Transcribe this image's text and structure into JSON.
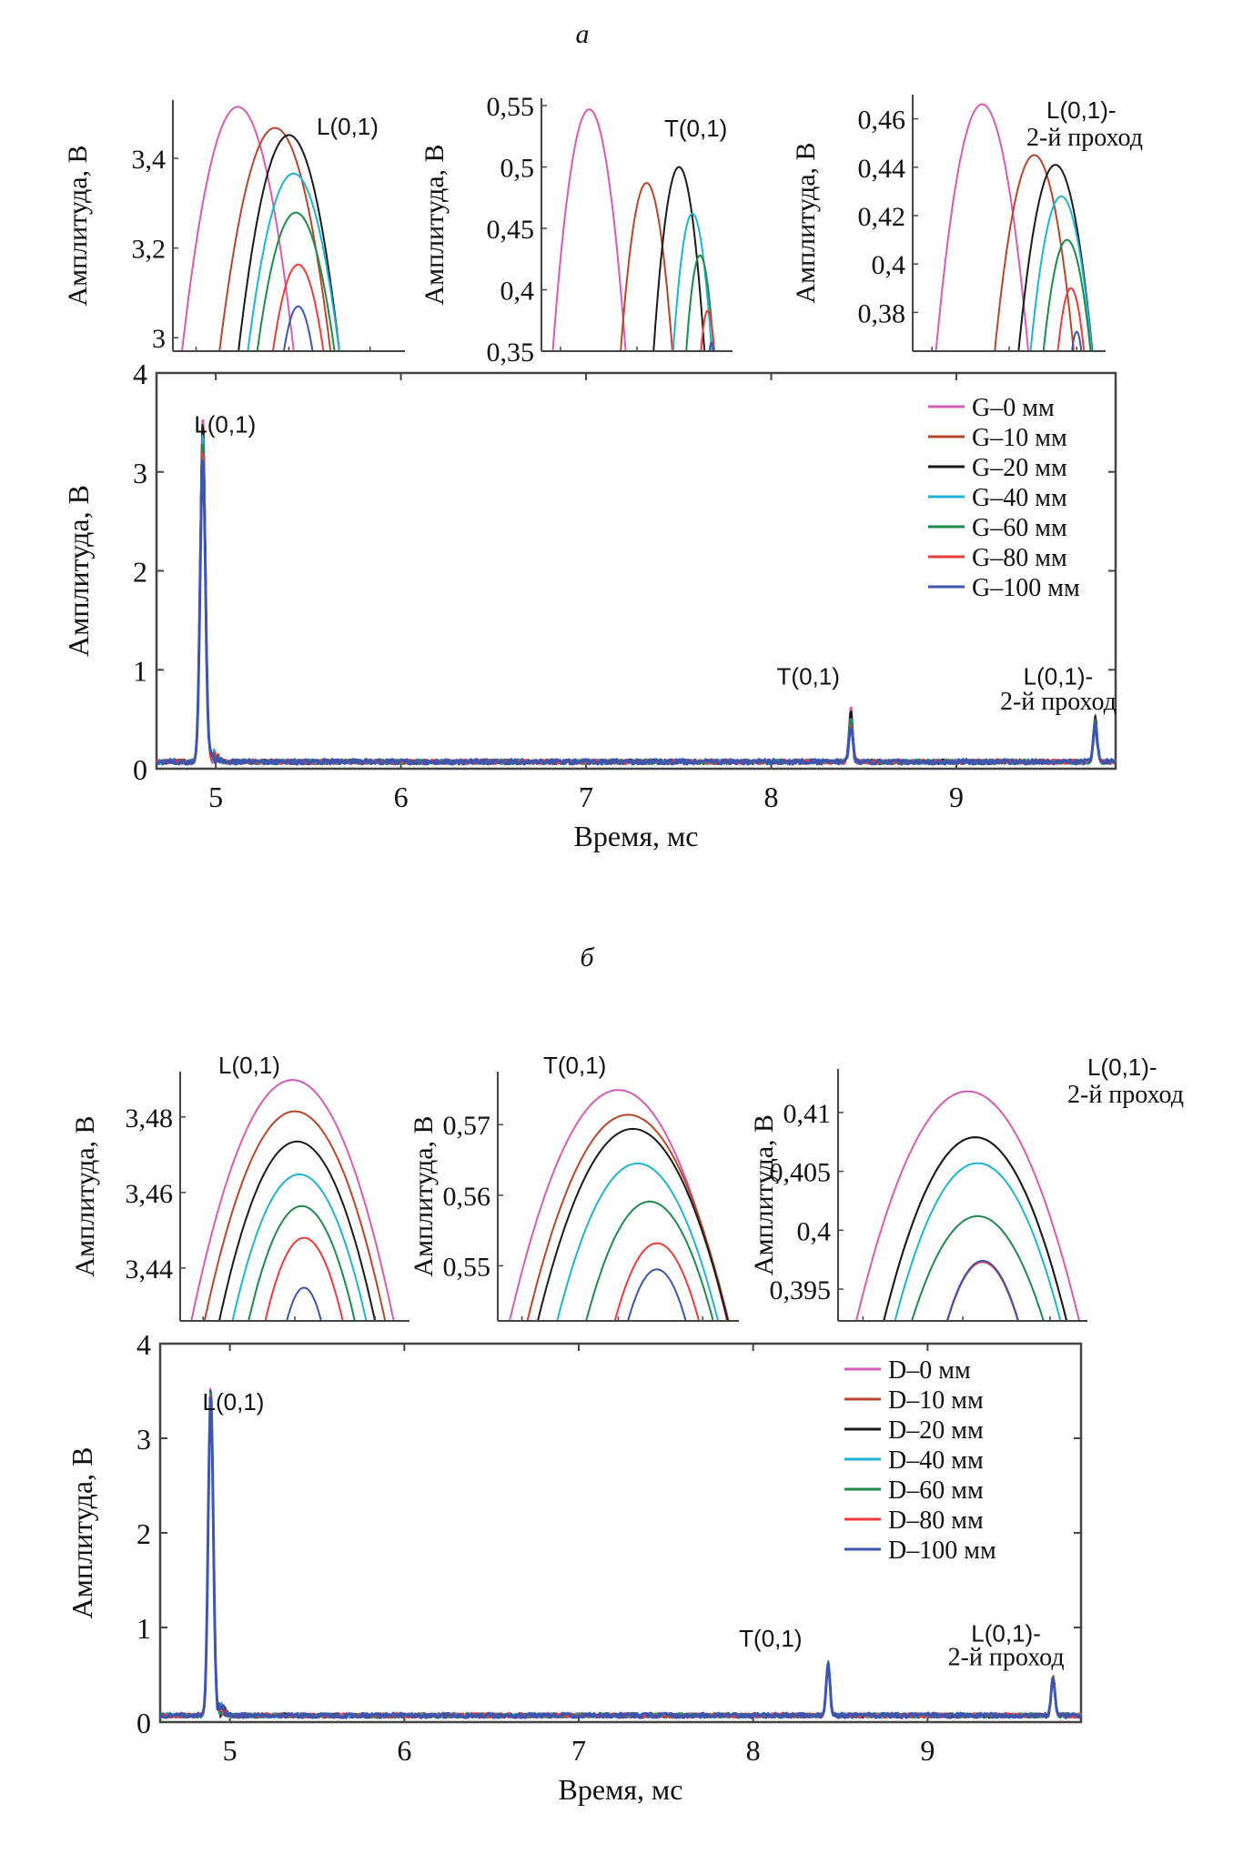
{
  "panel_labels": [
    "а",
    "б"
  ],
  "colors": {
    "0": "#d65cb5",
    "10": "#b8472a",
    "20": "#1a1a1a",
    "40": "#1fb3d4",
    "60": "#1e8a4c",
    "80": "#ee3b3b",
    "100": "#3e55b0"
  },
  "chart_data": [
    {
      "panel": "а",
      "type": "line",
      "title": "",
      "xlabel": "Время, мс",
      "ylabel": "Амплитуда, В",
      "xlim": [
        4.68,
        9.86
      ],
      "ylim": [
        0,
        4
      ],
      "xticks": [
        5,
        6,
        7,
        8,
        9
      ],
      "xtick_labels": [
        "5",
        "6",
        "7",
        "8",
        "9"
      ],
      "yticks": [
        0,
        1,
        2,
        3,
        4
      ],
      "ytick_labels": [
        "0",
        "1",
        "2",
        "3",
        "4"
      ],
      "grid": false,
      "legend_position": "top-right",
      "legend": [
        "G–0 мм",
        "G–10 мм",
        "G–20 мм",
        "G–40 мм",
        "G–60 мм",
        "G–80 мм",
        "G–100 мм"
      ],
      "series_keys": [
        "0",
        "10",
        "20",
        "40",
        "60",
        "80",
        "100"
      ],
      "baseline": 0.07,
      "annotations": [
        {
          "text": "L(0,1)",
          "x": 5.05,
          "y": 3.4
        },
        {
          "text": "T(0,1)",
          "x": 8.2,
          "y": 0.85
        },
        {
          "text": "L(0,1)-",
          "x": 9.55,
          "y": 0.85
        },
        {
          "text": "2-й проход",
          "x": 9.55,
          "y": 0.6
        }
      ],
      "peaks": [
        {
          "name": "L(0,1)",
          "x": 4.93,
          "width": 0.02,
          "amplitudes": [
            3.52,
            3.47,
            3.45,
            3.37,
            3.28,
            3.16,
            3.07
          ]
        },
        {
          "name": "T(0,1)",
          "x": 8.43,
          "width": 0.015,
          "amplitudes": [
            0.547,
            0.487,
            0.5,
            0.462,
            0.428,
            0.383,
            0.357
          ]
        },
        {
          "name": "L(0,1)-2-й проход",
          "x": 9.75,
          "width": 0.015,
          "amplitudes": [
            0.466,
            0.445,
            0.441,
            0.428,
            0.41,
            0.39,
            0.372
          ]
        }
      ],
      "insets": [
        {
          "name": "L(0,1)",
          "label": "L(0,1)",
          "ylabel": "Амплитуда, В",
          "ylim": [
            2.97,
            3.53
          ],
          "yticks": [
            3.0,
            3.2,
            3.4
          ],
          "ytick_labels": [
            "3",
            "3,2",
            "3,4"
          ],
          "peak_t": [
            0.28,
            0.44,
            0.5,
            0.52,
            0.53,
            0.54,
            0.54
          ],
          "peak_y": [
            3.515,
            3.468,
            3.452,
            3.366,
            3.279,
            3.163,
            3.07
          ],
          "half_width": [
            0.25,
            0.26,
            0.24,
            0.24,
            0.23,
            0.19,
            0.15
          ]
        },
        {
          "name": "T(0,1)",
          "label": "T(0,1)",
          "ylabel": "Амплитуда, В",
          "ylim": [
            0.35,
            0.556
          ],
          "yticks": [
            0.35,
            0.4,
            0.45,
            0.5,
            0.55
          ],
          "ytick_labels": [
            "0,35",
            "0,4",
            "0,45",
            "0,5",
            "0,55"
          ],
          "peak_t": [
            0.25,
            0.55,
            0.72,
            0.79,
            0.83,
            0.87,
            0.89
          ],
          "peak_y": [
            0.547,
            0.487,
            0.5,
            0.462,
            0.428,
            0.383,
            0.357
          ],
          "half_width": [
            0.2,
            0.17,
            0.16,
            0.14,
            0.12,
            0.09,
            0.06
          ]
        },
        {
          "name": "L(0,1)-2-й проход",
          "label": "L(0,1)-",
          "label2": "2-й проход",
          "ylabel": "Амплитуда, В",
          "ylim": [
            0.364,
            0.47
          ],
          "yticks": [
            0.38,
            0.4,
            0.42,
            0.44,
            0.46
          ],
          "ytick_labels": [
            "0,38",
            "0,4",
            "0,42",
            "0,44",
            "0,46"
          ],
          "peak_t": [
            0.36,
            0.63,
            0.74,
            0.77,
            0.8,
            0.82,
            0.85
          ],
          "peak_y": [
            0.466,
            0.445,
            0.441,
            0.428,
            0.41,
            0.39,
            0.372
          ],
          "half_width": [
            0.25,
            0.24,
            0.23,
            0.21,
            0.19,
            0.14,
            0.09
          ]
        }
      ]
    },
    {
      "panel": "б",
      "type": "line",
      "title": "",
      "xlabel": "Время, мс",
      "ylabel": "Амплитуда, В",
      "xlim": [
        4.6,
        9.88
      ],
      "ylim": [
        0,
        4
      ],
      "xticks": [
        5,
        6,
        7,
        8,
        9
      ],
      "xtick_labels": [
        "5",
        "6",
        "7",
        "8",
        "9"
      ],
      "yticks": [
        0,
        1,
        2,
        3,
        4
      ],
      "ytick_labels": [
        "0",
        "1",
        "2",
        "3",
        "4"
      ],
      "grid": false,
      "legend_position": "top-right",
      "legend": [
        "D–0 мм",
        "D–10 мм",
        "D–20 мм",
        "D–40 мм",
        "D–60 мм",
        "D–80 мм",
        "D–100 мм"
      ],
      "series_keys": [
        "0",
        "10",
        "20",
        "40",
        "60",
        "80",
        "100"
      ],
      "baseline": 0.07,
      "annotations": [
        {
          "text": "L(0,1)",
          "x": 5.02,
          "y": 3.3
        },
        {
          "text": "T(0,1)",
          "x": 8.1,
          "y": 0.8
        },
        {
          "text": "L(0,1)-",
          "x": 9.45,
          "y": 0.85
        },
        {
          "text": "2-й проход",
          "x": 9.45,
          "y": 0.6
        }
      ],
      "peaks": [
        {
          "name": "L(0,1)",
          "x": 4.89,
          "width": 0.02,
          "amplitudes": [
            3.49,
            3.482,
            3.474,
            3.465,
            3.457,
            3.449,
            3.436
          ]
        },
        {
          "name": "T(0,1)",
          "x": 8.43,
          "width": 0.015,
          "amplitudes": [
            0.575,
            0.571,
            0.569,
            0.564,
            0.559,
            0.553,
            0.549
          ]
        },
        {
          "name": "L(0,1)-2-й проход",
          "x": 9.72,
          "width": 0.015,
          "amplitudes": [
            0.4118,
            0.4079,
            0.4079,
            0.4057,
            0.4012,
            0.3973,
            0.3974
          ]
        }
      ],
      "insets": [
        {
          "name": "L(0,1)",
          "label": "L(0,1)",
          "ylabel": "Амплитуда, В",
          "ylim": [
            3.426,
            3.492
          ],
          "yticks": [
            3.44,
            3.46,
            3.48
          ],
          "ytick_labels": [
            "3,44",
            "3,46",
            "3,48"
          ],
          "peak_t": [
            0.49,
            0.5,
            0.51,
            0.52,
            0.53,
            0.54,
            0.54
          ],
          "peak_y": [
            3.4898,
            3.4815,
            3.4735,
            3.4648,
            3.4564,
            3.448,
            3.4348
          ],
          "half_width": [
            0.46,
            0.44,
            0.41,
            0.39,
            0.35,
            0.3,
            0.21
          ]
        },
        {
          "name": "T(0,1)",
          "label": "T(0,1)",
          "ylabel": "Амплитуда, В",
          "ylim": [
            0.5422,
            0.5775
          ],
          "yticks": [
            0.55,
            0.56,
            0.57
          ],
          "ytick_labels": [
            "0,55",
            "0,56",
            "0,57"
          ],
          "peak_t": [
            0.5,
            0.54,
            0.56,
            0.58,
            0.63,
            0.66,
            0.66
          ],
          "peak_y": [
            0.5749,
            0.5714,
            0.5694,
            0.5645,
            0.5591,
            0.5532,
            0.5495
          ],
          "half_width": [
            0.48,
            0.47,
            0.46,
            0.43,
            0.39,
            0.32,
            0.27
          ]
        },
        {
          "name": "L(0,1)-2-й проход",
          "label": "L(0,1)-",
          "label2": "2-й проход",
          "ylabel": "Амплитуда, В",
          "ylim": [
            0.3923,
            0.4137
          ],
          "yticks": [
            0.395,
            0.4,
            0.405,
            0.41
          ],
          "ytick_labels": [
            "0,395",
            "0,4",
            "0,405",
            "0,41"
          ],
          "peak_t": [
            0.52,
            0.55,
            0.55,
            0.56,
            0.56,
            0.58,
            0.58
          ],
          "peak_y": [
            0.4118,
            0.4079,
            0.4079,
            0.4057,
            0.4012,
            0.3973,
            0.3974
          ],
          "half_width": [
            0.48,
            0.44,
            0.44,
            0.43,
            0.42,
            0.3,
            0.3
          ]
        }
      ]
    }
  ]
}
